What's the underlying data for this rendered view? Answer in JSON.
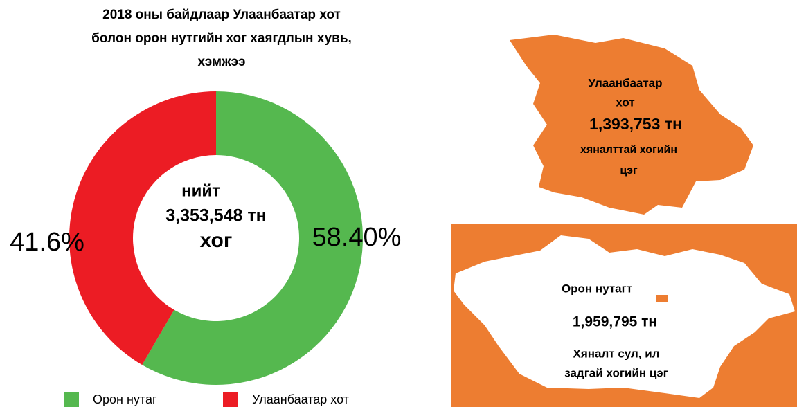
{
  "chart_data": {
    "type": "donut",
    "title": [
      "2018 оны байдлаар Улаанбаатар хот",
      "болон орон нутгийн хог хаягдлын хувь,",
      "хэмжээ"
    ],
    "categories": [
      "Орон нутаг",
      "Улаанбаатар хот"
    ],
    "values": [
      58.4,
      41.6
    ],
    "value_labels": [
      "58.40%",
      "41.6%"
    ],
    "colors": [
      "#55b84f",
      "#ec1c24"
    ],
    "center_label": [
      "нийт",
      "3,353,548 тн",
      "хог"
    ]
  },
  "panels": {
    "city": {
      "name": [
        "Улаанбаатар",
        "хот"
      ],
      "amount": "1,393,753 тн",
      "note": [
        "хяналттай хогийн",
        "цэг"
      ]
    },
    "rural": {
      "name": "Орон нутагт",
      "amount": "1,959,795 тн",
      "note": [
        "Хяналт сул, ил",
        "задгай хогийн цэг"
      ]
    }
  }
}
